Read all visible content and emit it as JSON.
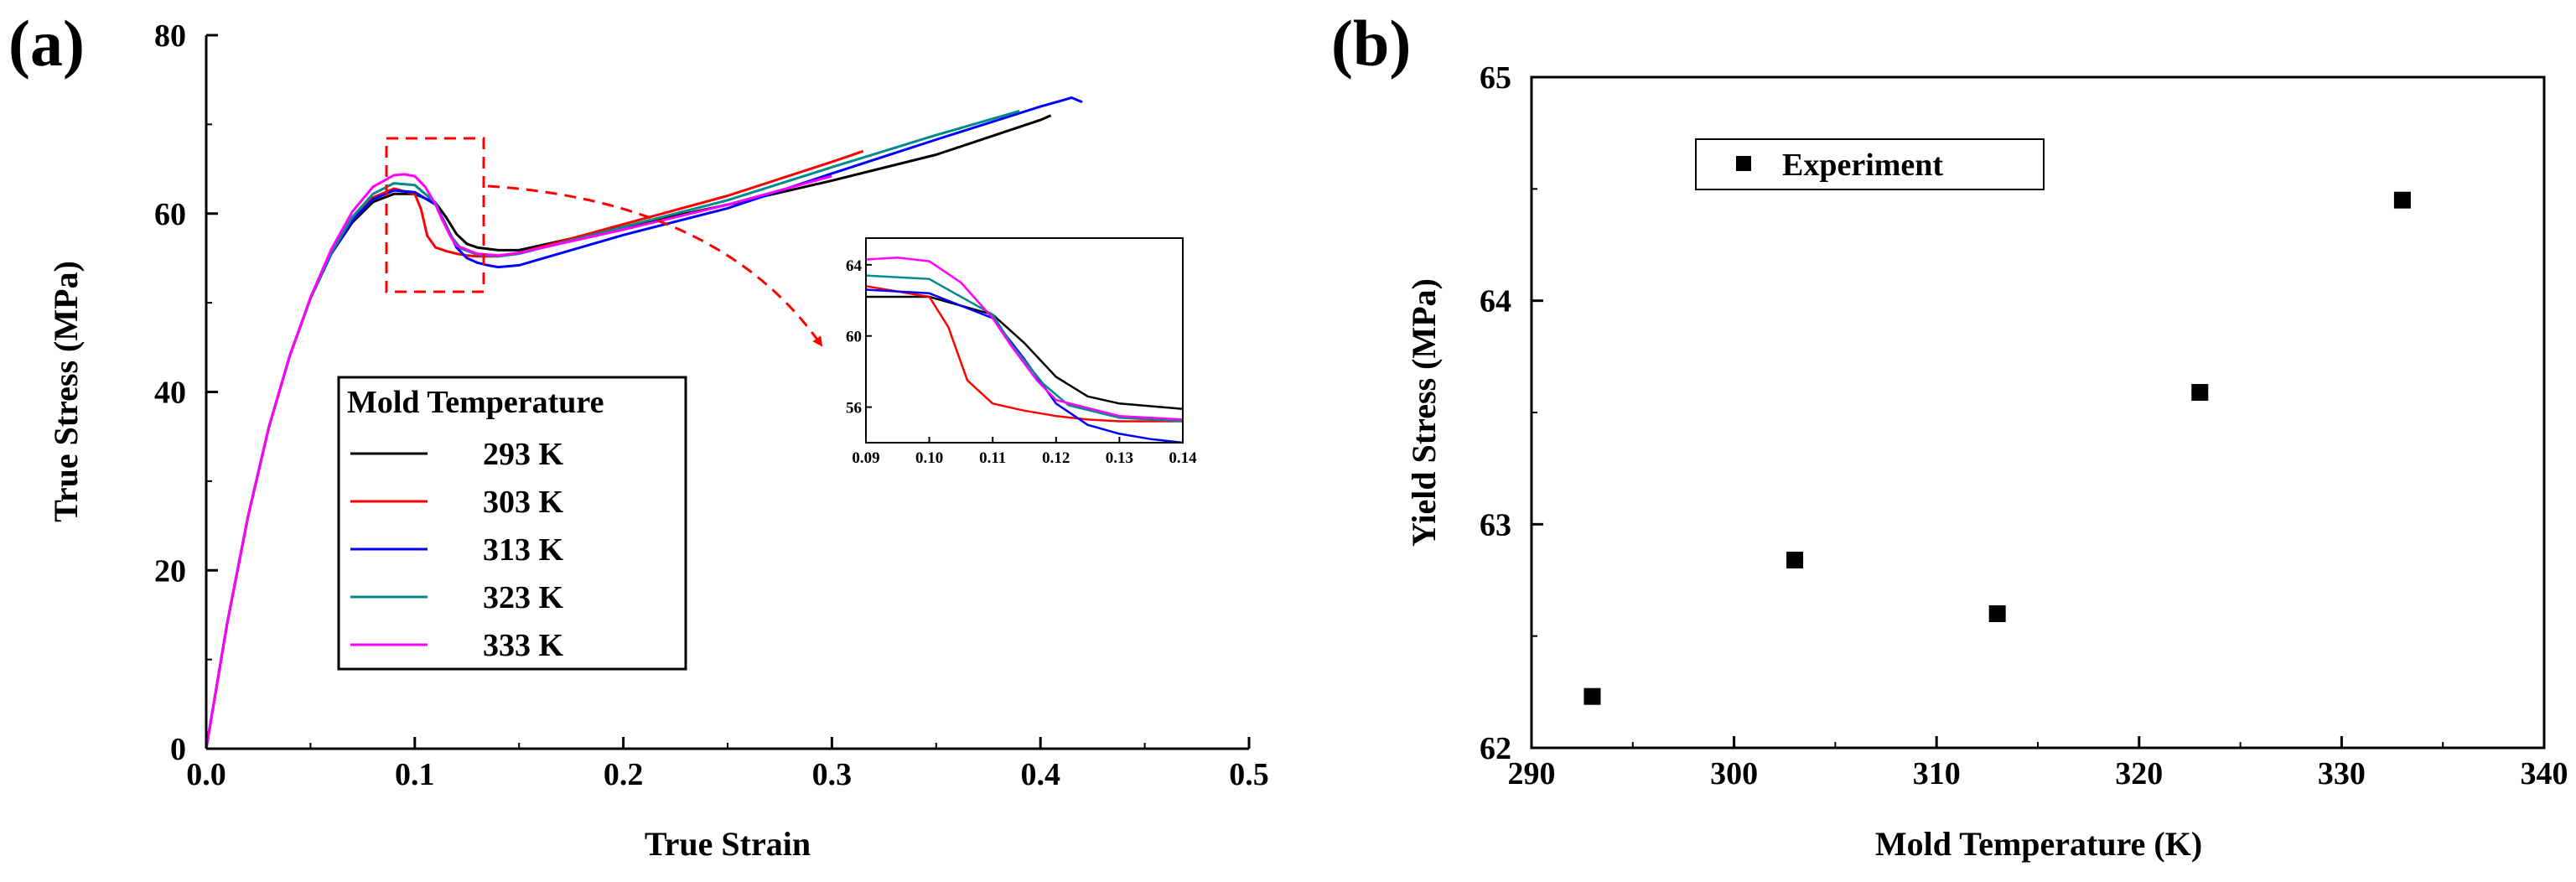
{
  "chart_data": [
    {
      "panel_label": "(a)",
      "type": "line",
      "xlabel": "True Strain",
      "ylabel": "True Stress (MPa)",
      "xlim": [
        0,
        0.5
      ],
      "ylim": [
        0,
        80
      ],
      "xticks": [
        "0.0",
        "0.1",
        "0.2",
        "0.3",
        "0.4",
        "0.5"
      ],
      "yticks": [
        "0",
        "20",
        "40",
        "60",
        "80"
      ],
      "legend": {
        "title": "Mold Temperature",
        "position": "lower-middle"
      },
      "series": [
        {
          "name": "293 K",
          "color": "#000000",
          "x": [
            0,
            0.01,
            0.02,
            0.03,
            0.04,
            0.05,
            0.06,
            0.07,
            0.08,
            0.09,
            0.1,
            0.11,
            0.115,
            0.12,
            0.125,
            0.13,
            0.14,
            0.15,
            0.2,
            0.25,
            0.3,
            0.35,
            0.4,
            0.405
          ],
          "y": [
            0,
            14,
            26,
            36,
            44,
            50.5,
            55.5,
            59,
            61.3,
            62.2,
            62.2,
            61.2,
            59.6,
            57.7,
            56.6,
            56.2,
            55.9,
            55.9,
            58.5,
            61.0,
            63.7,
            66.6,
            70.5,
            71.0
          ]
        },
        {
          "name": "303 K",
          "color": "#ff0000",
          "x": [
            0,
            0.01,
            0.02,
            0.03,
            0.04,
            0.05,
            0.06,
            0.07,
            0.08,
            0.09,
            0.1,
            0.103,
            0.106,
            0.11,
            0.115,
            0.12,
            0.125,
            0.13,
            0.14,
            0.15,
            0.2,
            0.25,
            0.3,
            0.315
          ],
          "y": [
            0,
            14,
            26,
            36,
            44,
            50.5,
            55.5,
            59.3,
            61.8,
            62.8,
            62.2,
            60.5,
            57.5,
            56.2,
            55.8,
            55.5,
            55.3,
            55.2,
            55.2,
            55.6,
            58.8,
            62.0,
            65.8,
            67.0
          ]
        },
        {
          "name": "313 K",
          "color": "#0000ff",
          "x": [
            0,
            0.01,
            0.02,
            0.03,
            0.04,
            0.05,
            0.06,
            0.07,
            0.08,
            0.09,
            0.1,
            0.11,
            0.115,
            0.12,
            0.125,
            0.13,
            0.135,
            0.14,
            0.15,
            0.2,
            0.25,
            0.3,
            0.35,
            0.4,
            0.415,
            0.42
          ],
          "y": [
            0,
            14,
            26,
            36,
            44,
            50.5,
            55.5,
            59.2,
            61.6,
            62.6,
            62.4,
            61.0,
            58.7,
            56.2,
            55.0,
            54.5,
            54.2,
            54.0,
            54.2,
            57.6,
            60.6,
            64.5,
            68.3,
            72.0,
            73.0,
            72.5
          ]
        },
        {
          "name": "323 K",
          "color": "#008b8b",
          "x": [
            0,
            0.01,
            0.02,
            0.03,
            0.04,
            0.05,
            0.06,
            0.07,
            0.08,
            0.09,
            0.1,
            0.11,
            0.113,
            0.118,
            0.122,
            0.13,
            0.14,
            0.15,
            0.2,
            0.25,
            0.3,
            0.35,
            0.39
          ],
          "y": [
            0,
            14,
            26,
            36,
            44,
            50.5,
            55.6,
            59.6,
            62.2,
            63.4,
            63.2,
            61.2,
            59.5,
            57.3,
            56.1,
            55.4,
            55.2,
            55.5,
            58.5,
            61.5,
            65.2,
            68.8,
            71.5
          ]
        },
        {
          "name": "333 K",
          "color": "#ff00ff",
          "x": [
            0,
            0.01,
            0.02,
            0.03,
            0.04,
            0.05,
            0.06,
            0.07,
            0.08,
            0.09,
            0.095,
            0.1,
            0.105,
            0.11,
            0.113,
            0.117,
            0.12,
            0.13,
            0.14,
            0.15,
            0.2,
            0.25,
            0.3
          ],
          "y": [
            0,
            14,
            26,
            36,
            44,
            50.6,
            56,
            60.2,
            63.0,
            64.3,
            64.4,
            64.2,
            63.0,
            61.0,
            59.4,
            57.5,
            56.4,
            55.5,
            55.3,
            55.6,
            58.2,
            61.0,
            64.2
          ]
        }
      ],
      "inset": {
        "xlim": [
          0.09,
          0.14
        ],
        "ylim": [
          54,
          65.5
        ],
        "xticks": [
          "0.09",
          "0.10",
          "0.11",
          "0.12",
          "0.13",
          "0.14"
        ],
        "yticks": [
          "56",
          "60",
          "64"
        ],
        "zoom_region": {
          "x": [
            0.086,
            0.135
          ],
          "y": [
            51.5,
            68.5
          ]
        }
      }
    },
    {
      "panel_label": "(b)",
      "type": "scatter",
      "xlabel": "Mold Temperature (K)",
      "ylabel": "Yield Stress (MPa)",
      "xlim": [
        290,
        340
      ],
      "ylim": [
        62,
        65
      ],
      "xticks": [
        "290",
        "300",
        "310",
        "320",
        "330",
        "340"
      ],
      "yticks": [
        "62",
        "63",
        "64",
        "65"
      ],
      "legend": {
        "entries": [
          "Experiment"
        ],
        "position": "top-left"
      },
      "series": [
        {
          "name": "Experiment",
          "color": "#000000",
          "marker": "square",
          "x": [
            293,
            303,
            313,
            323,
            333
          ],
          "y": [
            62.23,
            62.84,
            62.6,
            63.59,
            64.45
          ]
        }
      ]
    }
  ]
}
